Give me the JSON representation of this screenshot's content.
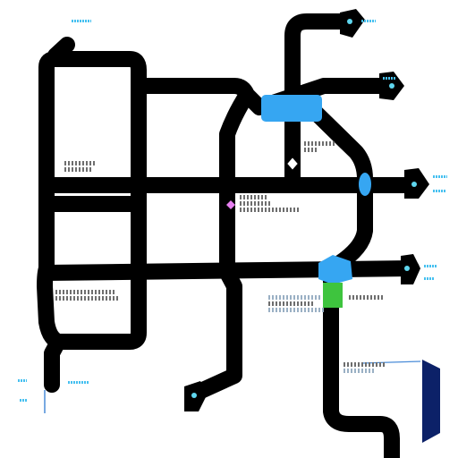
{
  "map": {
    "labels": [],
    "colors": {
      "route": "#000000",
      "station_blue": "#36a6f2",
      "station_green": "#3ec43e",
      "station_navy": "#0c2168",
      "diamond_pink": "#e67ff0",
      "arrow_cyan": "#5fd6ee",
      "label_text": "#6e6e6e",
      "label_accent": "#46c0f0"
    },
    "icons": [
      "station-marker-icon",
      "arrow-terminal-icon",
      "diamond-marker-icon"
    ]
  }
}
